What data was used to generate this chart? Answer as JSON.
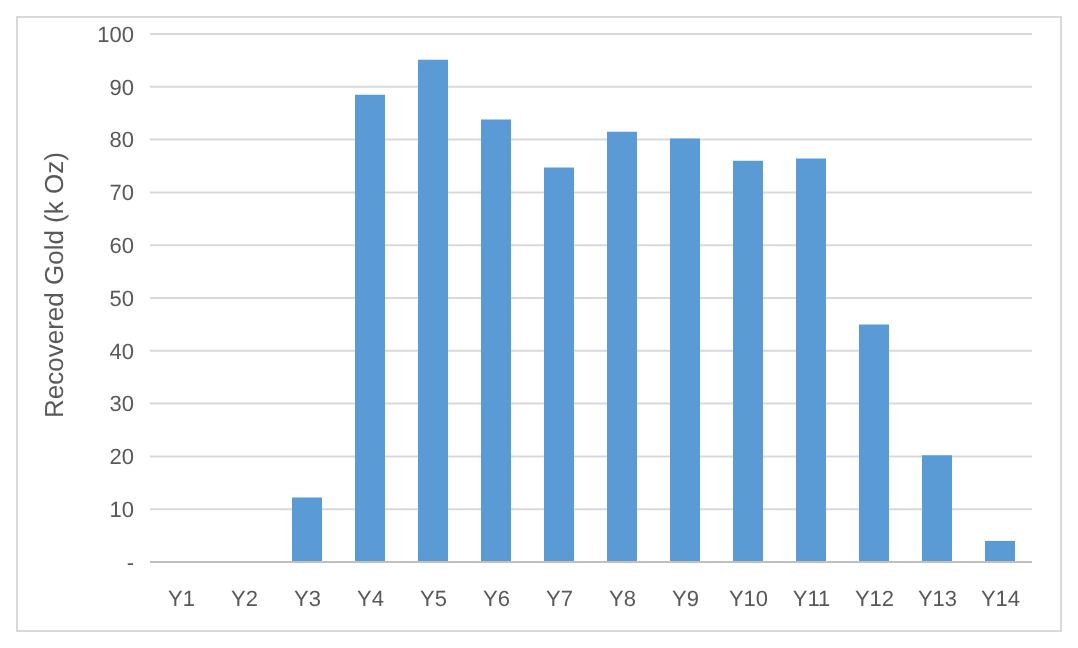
{
  "chart_data": {
    "type": "bar",
    "ylabel": "Recovered Gold  (k Oz)",
    "categories": [
      "Y1",
      "Y2",
      "Y3",
      "Y4",
      "Y5",
      "Y6",
      "Y7",
      "Y8",
      "Y9",
      "Y10",
      "Y11",
      "Y12",
      "Y13",
      "Y14"
    ],
    "values": [
      0,
      0,
      12.2,
      88.5,
      95.1,
      83.8,
      74.7,
      81.5,
      80.2,
      76.0,
      76.4,
      45.0,
      20.2,
      4.0
    ],
    "color": "#5b9bd5",
    "ylim": [
      0,
      100
    ],
    "yticks": [
      {
        "value": 0,
        "label": "-"
      },
      10,
      20,
      30,
      40,
      50,
      60,
      70,
      80,
      90,
      100
    ],
    "grid": "y"
  }
}
